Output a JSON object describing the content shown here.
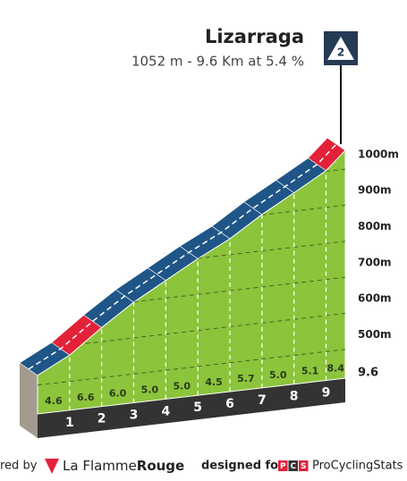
{
  "chart_data": {
    "type": "profile",
    "title": "Lizarraga",
    "subtitle": "1052 m - 9.6 Km at 5.4 %",
    "category": "2",
    "x": [
      0,
      1,
      2,
      3,
      4,
      5,
      6,
      7,
      8,
      9,
      9.6
    ],
    "elevations": [
      527,
      573,
      639,
      699,
      749,
      799,
      844,
      901,
      951,
      1002,
      1052
    ],
    "gradients": [
      4.6,
      6.6,
      6,
      5,
      5,
      4.5,
      5.7,
      5,
      5.1,
      8.4
    ],
    "value_labels": [
      "4.6",
      "6.6",
      "6.0",
      "5.0",
      "5.0",
      "4.5",
      "5.7",
      "5.0",
      "5.1",
      "8.4"
    ],
    "segment_colors": [
      "#1f5687",
      "#e3223a",
      "#1f5687",
      "#1f5687",
      "#1f5687",
      "#1f5687",
      "#1f5687",
      "#1f5687",
      "#1f5687",
      "#e3223a"
    ],
    "face_color": "#8cc43c",
    "xlim": [
      0,
      9.6
    ],
    "xticks": [
      1,
      2,
      3,
      4,
      5,
      6,
      7,
      8,
      9,
      9.6
    ],
    "ylim": [
      420,
      1060
    ],
    "yticks": [
      {
        "value": 500,
        "label": "500m"
      },
      {
        "value": 600,
        "label": "600m"
      },
      {
        "value": 700,
        "label": "700m"
      },
      {
        "value": 800,
        "label": "800m"
      },
      {
        "value": 900,
        "label": "900m"
      },
      {
        "value": 1000,
        "label": "1000m"
      }
    ],
    "grid": true
  },
  "footer": {
    "left_text": "red by",
    "brand_a": "La Flamme",
    "brand_b": "Rouge",
    "designed_for": "designed for",
    "pcs_letters": [
      "P",
      "C",
      "S"
    ],
    "pcs_name": "ProCyclingStats"
  }
}
